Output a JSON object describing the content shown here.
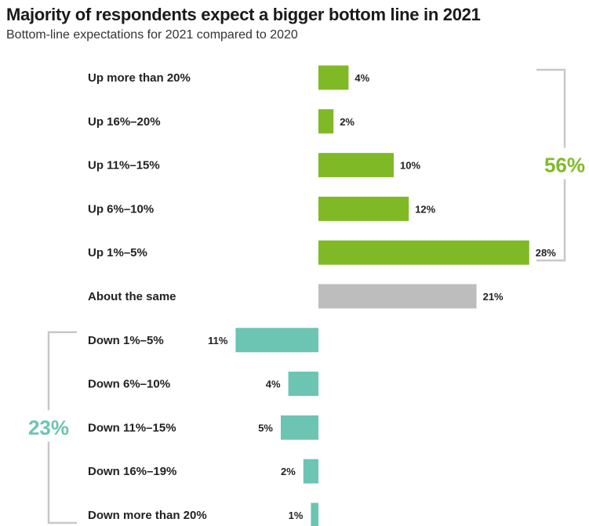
{
  "title": "Majority of respondents expect a bigger bottom line in 2021",
  "subtitle": "Bottom-line expectations for 2021 compared to 2020",
  "colors": {
    "up": "#7fba26",
    "same": "#bdbdbd",
    "down": "#6cc4b2",
    "bracket": "#c8c8c8"
  },
  "chart_data": {
    "type": "bar",
    "orientation": "horizontal-diverging",
    "title": "Majority of respondents expect a bigger bottom line in 2021",
    "subtitle": "Bottom-line expectations for 2021 compared to 2020",
    "unit": "%",
    "categories": [
      "Up more than 20%",
      "Up 16%–20%",
      "Up 11%–15%",
      "Up 6%–10%",
      "Up 1%–5%",
      "About the same",
      "Down 1%–5%",
      "Down 6%–10%",
      "Down 11%–15%",
      "Down 16%–19%",
      "Down more than 20%"
    ],
    "values": [
      4,
      2,
      10,
      12,
      28,
      21,
      11,
      4,
      5,
      2,
      1
    ],
    "value_labels": [
      "4%",
      "2%",
      "10%",
      "12%",
      "28%",
      "21%",
      "11%",
      "4%",
      "5%",
      "2%",
      "1%"
    ],
    "directions": [
      "up",
      "up",
      "up",
      "up",
      "up",
      "same",
      "down",
      "down",
      "down",
      "down",
      "down"
    ],
    "groups": [
      {
        "name": "up",
        "label": "56%",
        "from": 0,
        "to": 4
      },
      {
        "name": "down",
        "label": "23%",
        "from": 6,
        "to": 10
      }
    ]
  }
}
